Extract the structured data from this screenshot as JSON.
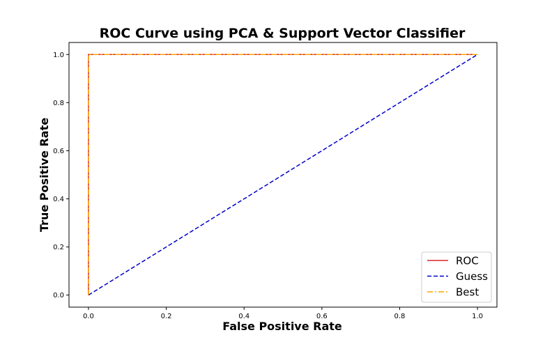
{
  "chart_data": {
    "type": "line",
    "title": "ROC Curve using  PCA & Support Vector Classifier",
    "xlabel": "False Positive Rate",
    "ylabel": "True Positive Rate",
    "xlim": [
      -0.05,
      1.05
    ],
    "ylim": [
      -0.05,
      1.05
    ],
    "x_ticks": [
      "0.0",
      "0.2",
      "0.4",
      "0.6",
      "0.8",
      "1.0"
    ],
    "y_ticks": [
      "0.0",
      "0.2",
      "0.4",
      "0.6",
      "0.8",
      "1.0"
    ],
    "grid": false,
    "legend_position": "lower-right",
    "series": [
      {
        "name": "ROC",
        "color": "#d62728",
        "style": "solid",
        "x": [
          0,
          0,
          1
        ],
        "y": [
          0,
          1,
          1
        ]
      },
      {
        "name": "Guess",
        "color": "#0000cc",
        "style": "dashed",
        "x": [
          0,
          1
        ],
        "y": [
          0,
          1
        ]
      },
      {
        "name": "Best",
        "color": "#ffa500",
        "style": "dashdot",
        "x": [
          0,
          0,
          1
        ],
        "y": [
          0,
          1,
          1
        ]
      }
    ]
  }
}
